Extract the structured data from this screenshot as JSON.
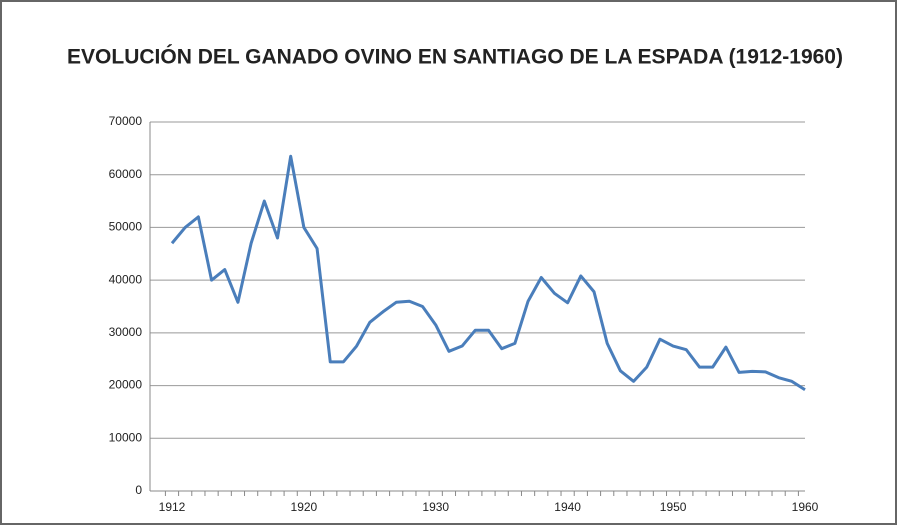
{
  "chart_data": {
    "type": "line",
    "title": "EVOLUCIÓN DEL GANADO OVINO EN SANTIAGO DE LA ESPADA (1912-1960)",
    "categories": [
      "1912",
      null,
      null,
      null,
      null,
      null,
      null,
      null,
      null,
      null,
      "1920",
      null,
      null,
      null,
      null,
      null,
      null,
      null,
      null,
      null,
      "1930",
      null,
      null,
      null,
      null,
      null,
      null,
      null,
      null,
      null,
      "1940",
      null,
      null,
      null,
      null,
      null,
      null,
      null,
      "1950",
      null,
      null,
      null,
      null,
      null,
      null,
      null,
      null,
      null,
      "1960"
    ],
    "series": [
      {
        "name": "Ganado ovino",
        "color": "#4a7ebb",
        "values": [
          47000,
          50000,
          52000,
          40000,
          42000,
          35800,
          47000,
          55000,
          48000,
          63500,
          50000,
          46000,
          24500,
          24500,
          27500,
          32000,
          34000,
          35800,
          36000,
          35000,
          31500,
          26500,
          27500,
          30500,
          30500,
          27000,
          28000,
          36000,
          40500,
          37500,
          35700,
          40800,
          37800,
          28000,
          22800,
          20800,
          23500,
          28800,
          27500,
          26800,
          23500,
          23500,
          27300,
          22500,
          22700,
          22600,
          21500,
          20800,
          19200
        ]
      }
    ],
    "ylim": [
      0,
      70000
    ],
    "yticks": [
      0,
      10000,
      20000,
      30000,
      40000,
      50000,
      60000,
      70000
    ],
    "grid": true
  }
}
